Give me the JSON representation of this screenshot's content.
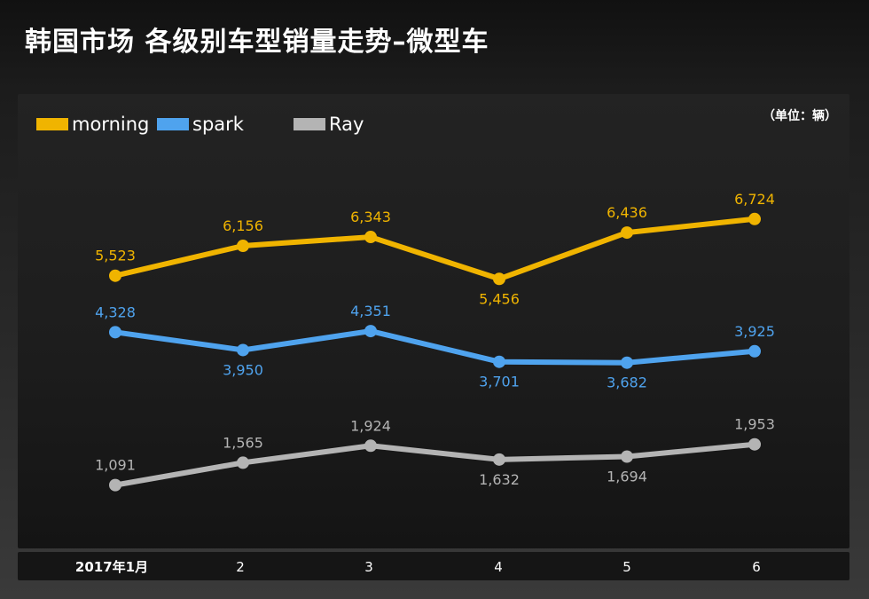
{
  "page": {
    "title": "韩国市场 各级别车型销量走势–微型车"
  },
  "chart_data": {
    "type": "line",
    "title": "韩国市场 各级别车型销量走势–微型车",
    "unit": "（单位：辆）",
    "categories": [
      "2017年1月",
      "2",
      "3",
      "4",
      "5",
      "6"
    ],
    "series": [
      {
        "name": "morning",
        "color": "#f0b400",
        "values": [
          5523,
          6156,
          6343,
          5456,
          6436,
          6724
        ],
        "labels": [
          "5,523",
          "6,156",
          "6,343",
          "5,456",
          "6,436",
          "6,724"
        ]
      },
      {
        "name": "spark",
        "color": "#4fa3ee",
        "values": [
          4328,
          3950,
          4351,
          3701,
          3682,
          3925
        ],
        "labels": [
          "4,328",
          "3,950",
          "4,351",
          "3,701",
          "3,682",
          "3,925"
        ]
      },
      {
        "name": "Ray",
        "color": "#b4b4b4",
        "values": [
          1091,
          1565,
          1924,
          1632,
          1694,
          1953
        ],
        "labels": [
          "1,091",
          "1,565",
          "1,924",
          "1,632",
          "1,694",
          "1,953"
        ]
      }
    ],
    "ylim": [
      -250,
      9350
    ],
    "legend": "top-left",
    "grid": false
  }
}
